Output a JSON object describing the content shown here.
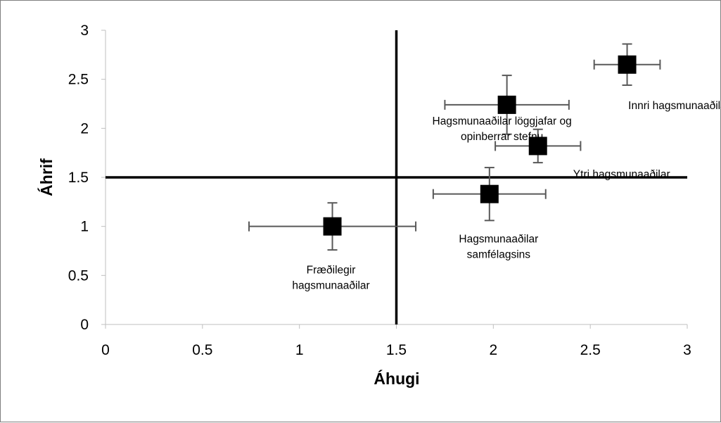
{
  "chart_data": {
    "type": "scatter",
    "title": "",
    "xlabel": "Áhugi",
    "ylabel": "Áhrif",
    "xlim": [
      0,
      3
    ],
    "ylim": [
      0,
      3
    ],
    "x_ticks": [
      "0",
      "0.5",
      "1",
      "1.5",
      "2",
      "2.5",
      "3"
    ],
    "y_ticks": [
      "0",
      "0.5",
      "1",
      "1.5",
      "2",
      "2.5",
      "3"
    ],
    "grid": false,
    "legend": "none",
    "reference_lines": {
      "x": 1.5,
      "y": 1.5
    },
    "marker": "square",
    "colors": {
      "marker": "#000000",
      "error_bar": "#595959",
      "reference_line": "#000000",
      "axis": "#bfbfbf"
    },
    "points": [
      {
        "label_lines": [
          "Innri hagsmunaaðilar"
        ],
        "x": 2.69,
        "y": 2.65,
        "x_err": 0.17,
        "y_err": 0.21
      },
      {
        "label_lines": [
          "Hagsmunaaðilar löggjafar og",
          "opinberrar stefnu"
        ],
        "x": 2.07,
        "y": 2.24,
        "x_err": 0.32,
        "y_err": 0.3
      },
      {
        "label_lines": [
          "Ytri hagsmunaaðilar"
        ],
        "x": 2.23,
        "y": 1.82,
        "x_err": 0.22,
        "y_err": 0.17
      },
      {
        "label_lines": [
          "Hagsmunaaðilar",
          "samfélagsins"
        ],
        "x": 1.98,
        "y": 1.33,
        "x_err": 0.29,
        "y_err": 0.27
      },
      {
        "label_lines": [
          "Fræðilegir",
          "hagsmunaaðilar"
        ],
        "x": 1.17,
        "y": 1.0,
        "x_err": 0.43,
        "y_err": 0.24
      }
    ]
  }
}
